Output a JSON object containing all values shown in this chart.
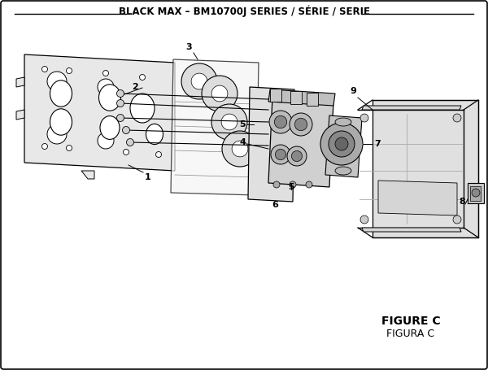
{
  "title": "BLACK MAX – BM10700J SERIES / SÉRIE / SERIE",
  "figure_label": "FIGURE C",
  "figura_label": "FIGURA C",
  "bg_color": "#ffffff",
  "line_color": "#000000",
  "light_gray": "#e8e8e8",
  "mid_gray": "#d0d0d0",
  "dark_gray": "#a0a0a0",
  "title_fontsize": 8.5,
  "label_fontsize": 8,
  "figsize": [
    6.0,
    4.55
  ],
  "dpi": 100
}
